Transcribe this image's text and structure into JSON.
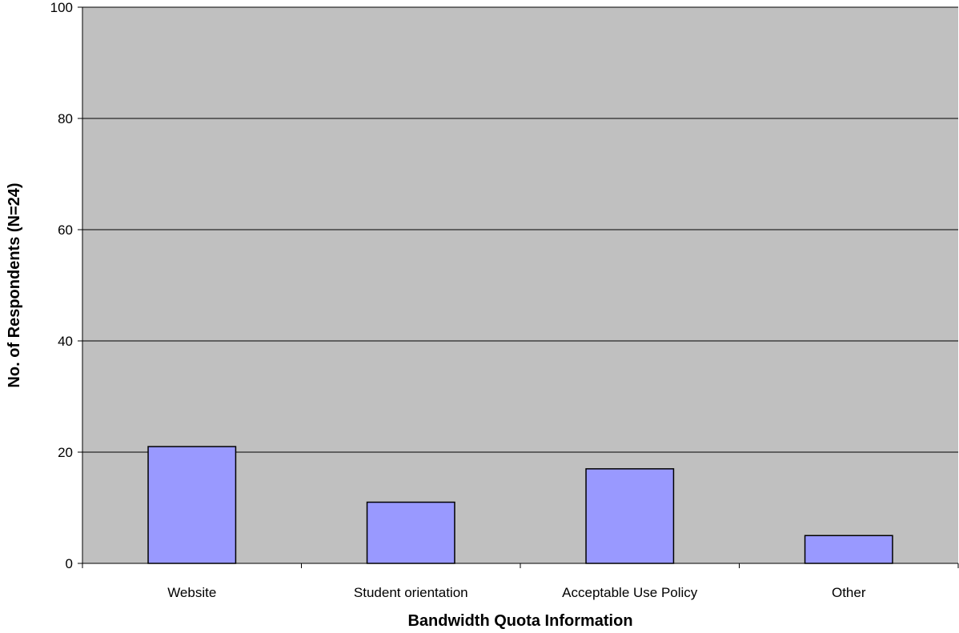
{
  "chart_data": {
    "type": "bar",
    "title": "",
    "xlabel": "Bandwidth Quota Information",
    "ylabel": "No. of Respondents (N=24)",
    "categories": [
      "Website",
      "Student orientation",
      "Acceptable Use Policy",
      "Other"
    ],
    "values": [
      21,
      11,
      17,
      5
    ],
    "ylim": [
      0,
      100
    ],
    "yticks": [
      0,
      20,
      40,
      60,
      80,
      100
    ],
    "grid": true,
    "legend": "none",
    "colors": {
      "plot_background": "#c0c0c0",
      "bar_fill": "#9999ff",
      "bar_stroke": "#000000",
      "gridline": "#000000"
    }
  }
}
